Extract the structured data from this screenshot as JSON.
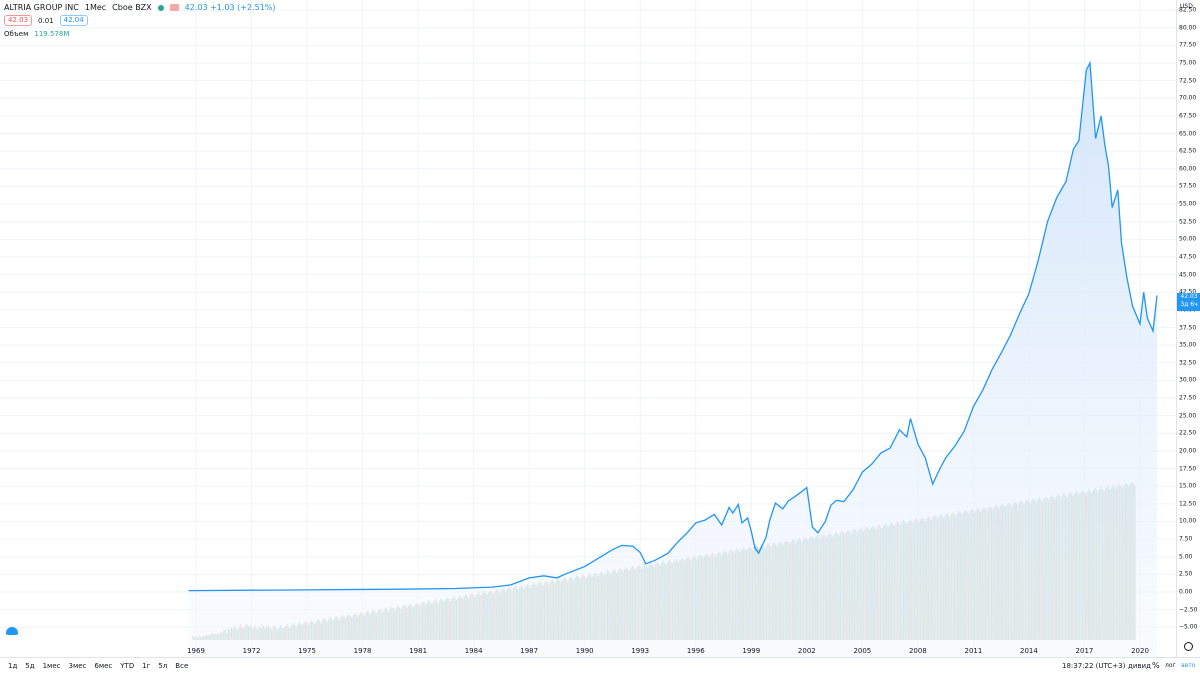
{
  "header": {
    "symbol": "ALTRIA GROUP INC",
    "interval": "1Мес",
    "exchange": "Cboe BZX",
    "bid": "42.03",
    "spread": "0.01",
    "ask": "42.04",
    "change": "42.03 +1.03 (+2.51%)",
    "volume_label": "Объем",
    "volume_value": "119.578M"
  },
  "axis": {
    "currency": "USD",
    "last_price": "42.03",
    "countdown": "3д 6ч"
  },
  "bottom": {
    "ranges": [
      "1д",
      "5д",
      "1мес",
      "3мес",
      "6мес",
      "YTD",
      "1г",
      "5л",
      "Все"
    ],
    "time": "18:37:22 (UTC+3)",
    "adjust_label": "дивид",
    "percent_label": "%",
    "log_label": "лог",
    "auto_label": "авто"
  },
  "colors": {
    "line": "#2196f3",
    "area_top": "#cfe3fa",
    "area_bottom": "#f6f9fe",
    "up_volume": "#8fd3c7",
    "down_volume": "#f4a9a7",
    "grid": "#f0f3fa"
  },
  "chart_data": {
    "type": "area",
    "x_start": 1969,
    "x_end": 2020.917,
    "ylim": [
      -7.5,
      82.5
    ],
    "y_ticks": [
      82.5,
      80.0,
      77.5,
      75.0,
      72.5,
      70.0,
      67.5,
      65.0,
      62.5,
      60.0,
      57.5,
      55.0,
      52.5,
      50.0,
      47.5,
      45.0,
      42.5,
      40.0,
      37.5,
      35.0,
      32.5,
      30.0,
      27.5,
      25.0,
      22.5,
      20.0,
      17.5,
      15.0,
      12.5,
      10.0,
      7.5,
      5.0,
      2.5,
      0.0,
      -2.5,
      -5.0
    ],
    "x_ticks": [
      "1969",
      "1972",
      "1975",
      "1978",
      "1981",
      "1984",
      "1987",
      "1990",
      "1993",
      "1996",
      "1999",
      "2002",
      "2005",
      "2008",
      "2011",
      "2014",
      "2017",
      "2020"
    ],
    "series": [
      {
        "type": "line",
        "x": [
          1968.6,
          1975,
          1980,
          1983,
          1985,
          1986,
          1987.0,
          1987.8,
          1988.5,
          1989,
          1990,
          1991,
          1991.5,
          1992.0,
          1992.6,
          1993.0,
          1993.3,
          1993.8,
          1994.5,
          1995,
          1995.5,
          1996,
          1996.5,
          1997,
          1997.4,
          1997.8,
          1998,
          1998.3,
          1998.5,
          1998.8,
          1999.0,
          1999.2,
          1999.4,
          1999.8,
          2000.0,
          2000.3,
          2000.7,
          2001,
          2001.5,
          2002.0,
          2002.3,
          2002.6,
          2003.0,
          2003.3,
          2003.6,
          2004.0,
          2004.5,
          2005,
          2005.5,
          2006,
          2006.5,
          2007,
          2007.4,
          2007.6,
          2008.0,
          2008.4,
          2008.8,
          2009.1,
          2009.5,
          2010,
          2010.5,
          2011,
          2011.5,
          2012,
          2012.5,
          2013,
          2013.5,
          2014,
          2014.5,
          2015,
          2015.5,
          2016.0,
          2016.4,
          2016.7,
          2016.9,
          2017.1,
          2017.3,
          2017.6,
          2017.9,
          2018.1,
          2018.3,
          2018.5,
          2018.8,
          2019.0,
          2019.3,
          2019.6,
          2020.0,
          2020.2,
          2020.4,
          2020.7,
          2020.917
        ],
        "values": [
          0.2,
          0.3,
          0.4,
          0.5,
          0.7,
          1.0,
          2.0,
          2.3,
          2.0,
          2.6,
          3.6,
          5.2,
          6.0,
          6.6,
          6.5,
          5.6,
          4.0,
          4.5,
          5.5,
          7.0,
          8.3,
          9.8,
          10.2,
          11.0,
          9.5,
          12.0,
          11.2,
          12.4,
          9.8,
          10.5,
          8.6,
          6.2,
          5.5,
          7.8,
          10.2,
          12.6,
          11.8,
          12.9,
          13.8,
          14.8,
          9.2,
          8.4,
          10.0,
          12.3,
          13.0,
          12.8,
          14.5,
          17.0,
          18.1,
          19.7,
          20.4,
          23.0,
          22.0,
          24.6,
          21.0,
          19.0,
          15.3,
          17.0,
          19.0,
          20.7,
          22.8,
          26.3,
          28.6,
          31.5,
          33.9,
          36.4,
          39.5,
          42.3,
          47.0,
          52.5,
          55.9,
          58.2,
          62.8,
          64.0,
          69.0,
          74.0,
          75.0,
          64.3,
          67.5,
          63.4,
          60.4,
          54.5,
          57.0,
          49.5,
          44.5,
          40.5,
          38.0,
          42.5,
          38.8,
          37.0,
          42.03
        ]
      },
      {
        "type": "volume",
        "name": "Объем",
        "x_start": 1968.83,
        "step": 0.0833,
        "values": [
          0.8,
          0.5,
          0.7,
          0.4,
          0.9,
          0.6,
          0.5,
          0.8,
          0.7,
          0.9,
          1.0,
          0.9,
          1.2,
          1.4,
          1.0,
          1.3,
          1.1,
          1.2,
          1.5,
          1.3,
          1.8,
          2.0,
          1.4,
          2.2,
          1.9,
          2.5,
          2.1,
          2.8,
          2.3,
          1.9,
          2.6,
          3.0,
          2.4,
          2.2,
          2.7,
          3.1,
          2.6,
          2.9,
          2.5,
          2.2,
          2.8,
          2.4,
          2.0,
          2.6,
          2.3,
          3.0,
          2.7,
          2.2,
          2.5,
          2.9,
          2.4,
          2.1,
          2.6,
          2.8,
          2.3,
          2.0,
          2.5,
          2.9,
          2.4,
          2.2,
          2.7,
          3.1,
          2.6,
          2.3,
          2.8,
          3.3,
          2.9,
          2.6,
          3.0,
          3.5,
          3.1,
          2.8,
          3.2,
          3.6,
          3.3,
          2.9,
          3.4,
          3.8,
          3.5,
          3.1,
          3.6,
          4.0,
          3.7,
          3.3,
          3.8,
          4.2,
          3.9,
          3.5,
          4.0,
          4.4,
          4.1,
          3.7,
          4.2,
          4.6,
          4.3,
          3.9,
          4.4,
          4.8,
          4.5,
          4.1,
          4.6,
          5.0,
          4.7,
          4.3,
          4.8,
          5.2,
          4.9,
          4.5,
          5.0,
          5.4,
          5.1,
          4.7,
          5.2,
          5.6,
          5.3,
          4.9,
          5.4,
          5.8,
          5.5,
          5.1,
          5.6,
          6.0,
          5.7,
          5.3,
          5.8,
          6.2,
          5.9,
          5.5,
          6.0,
          6.4,
          6.1,
          5.7,
          6.2,
          6.6,
          6.3,
          5.9,
          6.4,
          6.8,
          6.5,
          6.1,
          6.6,
          7.0,
          6.7,
          6.3,
          6.8,
          7.2,
          6.9,
          6.5,
          7.0,
          7.4,
          7.1,
          6.7,
          7.2,
          7.6,
          7.3,
          6.9,
          7.4,
          7.8,
          7.5,
          7.1,
          7.6,
          8.0,
          7.7,
          7.3,
          7.8,
          8.2,
          7.9,
          7.5,
          8.0,
          8.4,
          8.1,
          7.7,
          8.2,
          8.6,
          8.3,
          7.9,
          8.4,
          8.8,
          8.5,
          8.1,
          8.6,
          9.0,
          8.7,
          8.3,
          8.8,
          9.2,
          8.9,
          8.5,
          9.0,
          9.4,
          9.1,
          8.7,
          9.2,
          9.6,
          9.3,
          8.9,
          9.4,
          9.8,
          9.5,
          9.1,
          9.6,
          10.0,
          9.7,
          9.3,
          9.8,
          10.2,
          9.9,
          9.5,
          10.0,
          10.4,
          10.1,
          9.7,
          10.2,
          10.6,
          10.3,
          9.9,
          10.4,
          10.8,
          10.5,
          10.1,
          10.6,
          11.0,
          10.7,
          10.3,
          10.8,
          11.2,
          10.9,
          10.5,
          11.0,
          11.4,
          11.1,
          10.7,
          11.2,
          11.6,
          11.3,
          10.9,
          11.4,
          11.8,
          11.5,
          11.1,
          11.6,
          12.0,
          11.7,
          11.3,
          11.8,
          12.2,
          11.9,
          11.5,
          12.0,
          12.4,
          12.1,
          11.7,
          12.2,
          12.6,
          12.3,
          11.9,
          12.4,
          12.8,
          12.5,
          12.1,
          12.6,
          13.0,
          12.7,
          12.3,
          12.8,
          13.2,
          12.9,
          12.5,
          13.0,
          13.4,
          13.1,
          12.7,
          13.2,
          13.6,
          13.3,
          12.9,
          13.4,
          13.8,
          13.5,
          13.1,
          13.6,
          14.0,
          13.7,
          13.3,
          13.8,
          14.2,
          13.9,
          13.5,
          14.0,
          14.4,
          14.1,
          13.7,
          14.2,
          14.6,
          14.3,
          13.9,
          14.4,
          14.8,
          14.5,
          14.1,
          14.6,
          15.0,
          14.7,
          14.3,
          14.8,
          15.2,
          14.9,
          14.5,
          15.0,
          15.4,
          15.1,
          14.7,
          15.2,
          15.6,
          15.3,
          14.9,
          15.4,
          15.8,
          15.5,
          15.1,
          15.6,
          16.0,
          15.7,
          15.3,
          15.8,
          16.2,
          15.9,
          15.5,
          16.0,
          16.4,
          16.1,
          15.7,
          16.2,
          16.6,
          16.3,
          15.9,
          16.4,
          16.8,
          16.5,
          16.1,
          16.6,
          17.0,
          16.7,
          16.3,
          16.8,
          17.2,
          16.9,
          16.5,
          17.0,
          17.4,
          17.1,
          16.7,
          17.2,
          17.6,
          17.3,
          16.9,
          17.4,
          17.8,
          17.5,
          17.1,
          17.6,
          18.0,
          17.7,
          17.3,
          17.8,
          18.2,
          17.9,
          17.5,
          18.0,
          18.4,
          18.1,
          17.7,
          18.2,
          18.6,
          18.3,
          17.9,
          18.4,
          18.8,
          18.5,
          18.1,
          18.6,
          19.0,
          18.7,
          18.3,
          18.8,
          19.2,
          18.9,
          18.5,
          19.0,
          19.4,
          19.1,
          18.7,
          19.2,
          19.6,
          19.3,
          18.9,
          19.4,
          19.8,
          19.5,
          19.1,
          19.6,
          20.0,
          19.7,
          19.3,
          19.8,
          20.2,
          19.9,
          19.5,
          20.0,
          20.4,
          20.1,
          19.7,
          20.2,
          20.6,
          20.3,
          19.9,
          20.4,
          20.8,
          20.5,
          20.1,
          20.6,
          21.0,
          20.7,
          20.3,
          20.8,
          21.2,
          20.9,
          20.5,
          21.0,
          21.4,
          21.1,
          20.7,
          21.2,
          21.6,
          21.3,
          20.9,
          21.4,
          21.8,
          21.5,
          21.1,
          21.6,
          22.0,
          21.7,
          21.3,
          21.8,
          22.2,
          21.9,
          21.5,
          22.0,
          22.4,
          22.1,
          21.7,
          22.2,
          22.6,
          22.3,
          21.9,
          22.4,
          22.8,
          22.5,
          22.1,
          22.6,
          23.0,
          22.7,
          22.3,
          22.8,
          23.2,
          22.9,
          22.5,
          23.0,
          23.4,
          23.1,
          22.7,
          23.2,
          23.6,
          23.3,
          22.9,
          23.4,
          23.8,
          23.5,
          23.1,
          23.6,
          24.0,
          23.7,
          23.3,
          23.8,
          24.2,
          23.9,
          23.5,
          24.0,
          24.4,
          24.1,
          23.7,
          24.2,
          24.6,
          24.3,
          23.9,
          24.4,
          24.8,
          24.5,
          24.1,
          24.6,
          25.0,
          24.7,
          24.3,
          24.8,
          25.2,
          24.9,
          24.5,
          25.0,
          25.4,
          25.1,
          24.7,
          25.2,
          25.6,
          25.3,
          24.9,
          25.4,
          25.8,
          25.5,
          25.1,
          25.6,
          26.0,
          25.7,
          25.3,
          25.8,
          26.2,
          25.9,
          25.5,
          26.0,
          26.4,
          26.1,
          25.7,
          26.2,
          26.6,
          26.3,
          25.9,
          26.4,
          26.8,
          26.5,
          26.1,
          26.6,
          27.0,
          26.7,
          26.3,
          26.8,
          27.2,
          26.9,
          26.5,
          27.0,
          27.4,
          27.1,
          26.7,
          27.2,
          27.6,
          27.3,
          26.9,
          27.4,
          27.8,
          27.5,
          27.1,
          27.6,
          28.0,
          27.7,
          27.3,
          27.8,
          28.2,
          27.9,
          27.5,
          28.0,
          28.4,
          28.1,
          27.7,
          28.2,
          28.6,
          28.3,
          27.9,
          28.4,
          28.8,
          28.5,
          28.1,
          28.6,
          29.0,
          28.7,
          28.3,
          28.8,
          29.2,
          28.9,
          28.5,
          29.0,
          29.4,
          29.1,
          28.7,
          29.2,
          29.6,
          29.3,
          28.9,
          29.4,
          29.8,
          29.5,
          29.1,
          29.6,
          30.0,
          29.7,
          29.3,
          29.8,
          30.2,
          29.9,
          29.5,
          30.0,
          30.4,
          30.1,
          29.7
        ]
      }
    ],
    "xlabel": "",
    "ylabel": "USD",
    "grid": true
  }
}
